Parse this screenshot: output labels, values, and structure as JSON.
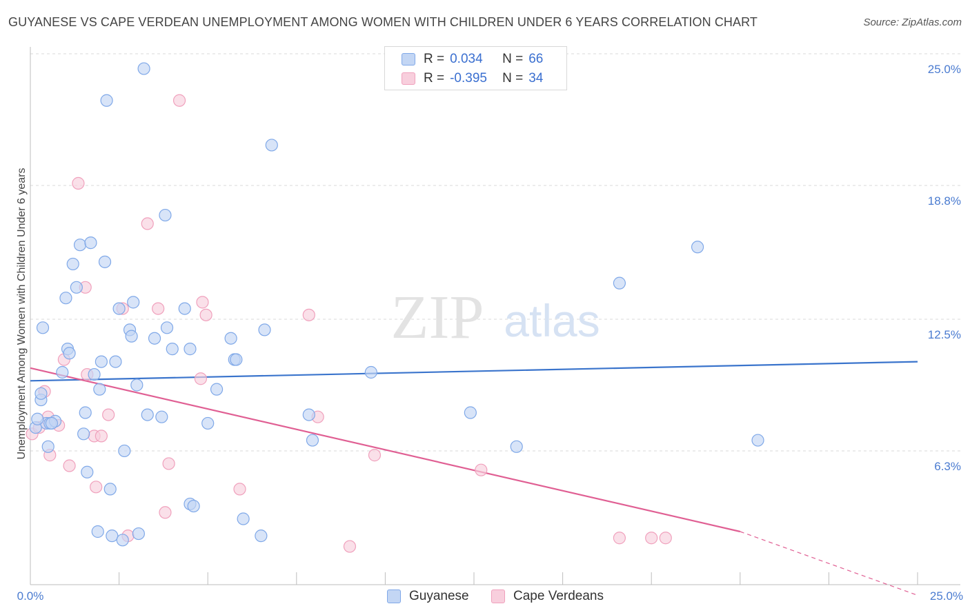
{
  "chart_data": {
    "type": "scatter",
    "title": "GUYANESE VS CAPE VERDEAN UNEMPLOYMENT AMONG WOMEN WITH CHILDREN UNDER 6 YEARS CORRELATION CHART",
    "source": "Source: ZipAtlas.com",
    "watermark": {
      "zip": "ZIP",
      "atlas": "atlas"
    },
    "ylabel": "Unemployment Among Women with Children Under 6 years",
    "xlim": [
      0,
      25
    ],
    "ylim": [
      0,
      25
    ],
    "x_tick_labels": [
      "0.0%",
      "25.0%"
    ],
    "y_ticks": [
      {
        "value": 6.3,
        "label": "6.3%"
      },
      {
        "value": 12.5,
        "label": "12.5%"
      },
      {
        "value": 18.8,
        "label": "18.8%"
      },
      {
        "value": 25.0,
        "label": "25.0%"
      }
    ],
    "legend": [
      {
        "r_label": "R =",
        "r_value": "0.034",
        "n_label": "N =",
        "n_value": "66"
      },
      {
        "r_label": "R =",
        "r_value": "-0.395",
        "n_label": "N =",
        "n_value": "34"
      }
    ],
    "series": [
      {
        "name": "Guyanese",
        "color": "#7fa8e8",
        "fill": "#c3d6f4",
        "line_color": "#3a74cc",
        "trend": {
          "x0": 0,
          "y0": 9.6,
          "x1": 25,
          "y1": 10.5
        },
        "points": [
          [
            0.15,
            7.4
          ],
          [
            0.3,
            8.7
          ],
          [
            0.45,
            7.6
          ],
          [
            0.2,
            7.8
          ],
          [
            0.3,
            9.0
          ],
          [
            0.5,
            6.5
          ],
          [
            0.55,
            7.6
          ],
          [
            0.7,
            7.7
          ],
          [
            0.35,
            12.1
          ],
          [
            0.9,
            10.0
          ],
          [
            1.0,
            13.5
          ],
          [
            1.05,
            11.1
          ],
          [
            1.1,
            10.9
          ],
          [
            1.2,
            15.1
          ],
          [
            1.3,
            14.0
          ],
          [
            1.4,
            16.0
          ],
          [
            1.5,
            7.1
          ],
          [
            1.55,
            8.1
          ],
          [
            1.6,
            5.3
          ],
          [
            1.7,
            16.1
          ],
          [
            1.8,
            9.9
          ],
          [
            1.9,
            2.5
          ],
          [
            1.95,
            9.2
          ],
          [
            2.0,
            10.5
          ],
          [
            2.1,
            15.2
          ],
          [
            2.15,
            22.8
          ],
          [
            2.25,
            4.5
          ],
          [
            2.3,
            2.3
          ],
          [
            2.4,
            10.5
          ],
          [
            2.5,
            13.0
          ],
          [
            2.6,
            2.1
          ],
          [
            2.65,
            6.3
          ],
          [
            2.8,
            12.0
          ],
          [
            2.85,
            11.7
          ],
          [
            2.9,
            13.3
          ],
          [
            3.0,
            9.4
          ],
          [
            3.05,
            2.4
          ],
          [
            3.2,
            24.3
          ],
          [
            3.3,
            8.0
          ],
          [
            3.5,
            11.6
          ],
          [
            3.7,
            7.9
          ],
          [
            3.8,
            17.4
          ],
          [
            3.85,
            12.1
          ],
          [
            4.0,
            11.1
          ],
          [
            4.35,
            13.0
          ],
          [
            4.5,
            11.1
          ],
          [
            4.5,
            3.8
          ],
          [
            4.6,
            3.7
          ],
          [
            5.0,
            7.6
          ],
          [
            5.25,
            9.2
          ],
          [
            5.65,
            11.6
          ],
          [
            5.75,
            10.6
          ],
          [
            5.8,
            10.6
          ],
          [
            6.0,
            3.1
          ],
          [
            6.5,
            2.3
          ],
          [
            6.6,
            12.0
          ],
          [
            6.8,
            20.7
          ],
          [
            7.85,
            8.0
          ],
          [
            7.95,
            6.8
          ],
          [
            9.6,
            10.0
          ],
          [
            12.4,
            8.1
          ],
          [
            13.7,
            6.5
          ],
          [
            16.6,
            14.2
          ],
          [
            18.8,
            15.9
          ],
          [
            20.5,
            6.8
          ],
          [
            0.6,
            7.6
          ]
        ]
      },
      {
        "name": "Cape Verdeans",
        "color": "#f0a0bc",
        "fill": "#f8cfdd",
        "line_color": "#e05f93",
        "trend": {
          "x0": 0,
          "y0": 10.2,
          "x1": 20,
          "y1": 2.5,
          "dash_to_x": 25,
          "dash_to_y": -0.5
        },
        "points": [
          [
            0.05,
            7.1
          ],
          [
            0.25,
            7.4
          ],
          [
            0.4,
            9.1
          ],
          [
            0.5,
            7.9
          ],
          [
            0.55,
            6.1
          ],
          [
            0.8,
            7.5
          ],
          [
            0.95,
            10.6
          ],
          [
            1.1,
            5.6
          ],
          [
            1.35,
            18.9
          ],
          [
            1.55,
            14.0
          ],
          [
            1.6,
            9.9
          ],
          [
            1.8,
            7.0
          ],
          [
            1.85,
            4.6
          ],
          [
            2.0,
            7.0
          ],
          [
            2.2,
            8.0
          ],
          [
            2.6,
            13.0
          ],
          [
            2.75,
            2.3
          ],
          [
            3.3,
            17.0
          ],
          [
            3.6,
            13.0
          ],
          [
            3.8,
            3.4
          ],
          [
            3.9,
            5.7
          ],
          [
            4.2,
            22.8
          ],
          [
            4.8,
            9.7
          ],
          [
            4.85,
            13.3
          ],
          [
            4.95,
            12.7
          ],
          [
            5.9,
            4.5
          ],
          [
            7.85,
            12.7
          ],
          [
            8.1,
            7.9
          ],
          [
            9.0,
            1.8
          ],
          [
            9.7,
            6.1
          ],
          [
            12.7,
            5.4
          ],
          [
            16.6,
            2.2
          ],
          [
            17.5,
            2.2
          ],
          [
            17.9,
            2.2
          ]
        ]
      }
    ]
  }
}
